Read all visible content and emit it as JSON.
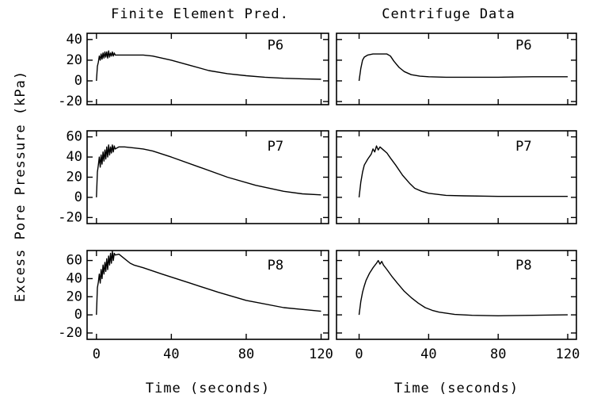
{
  "chart_data": [
    {
      "type": "line",
      "title": "Finite Element Pred.",
      "annotation": "P6",
      "x": [
        0,
        0.5,
        1,
        1.5,
        2,
        2.5,
        3,
        3.5,
        4,
        4.5,
        5,
        5.5,
        6,
        6.5,
        7,
        7.5,
        8,
        8.5,
        9,
        9.5,
        10,
        12,
        15,
        20,
        25,
        30,
        40,
        50,
        60,
        70,
        80,
        90,
        100,
        110,
        120
      ],
      "values": [
        0,
        14,
        18,
        24,
        20,
        26,
        21,
        27,
        22,
        28,
        23,
        28,
        22,
        29,
        23,
        27,
        24,
        28,
        24,
        27,
        25,
        25,
        25,
        25,
        25,
        24,
        20,
        15,
        10,
        7,
        5,
        3.5,
        2.5,
        2,
        1.5
      ],
      "xlim": [
        -5,
        124
      ],
      "ylim": [
        -23,
        46
      ],
      "xticks": [
        0,
        40,
        80,
        120
      ],
      "yticks": [
        -20,
        0,
        20,
        40
      ]
    },
    {
      "type": "line",
      "title": "Centrifuge Data",
      "annotation": "P6",
      "x": [
        0,
        1,
        2,
        3,
        5,
        8,
        12,
        16,
        18,
        20,
        23,
        26,
        30,
        35,
        40,
        50,
        60,
        80,
        100,
        120
      ],
      "values": [
        0,
        12,
        20,
        23,
        25,
        26,
        26,
        26,
        24,
        19,
        13,
        9,
        6,
        4.5,
        4,
        3.5,
        3.5,
        3.5,
        4,
        4
      ],
      "xlim": [
        -13,
        125
      ],
      "ylim": [
        -23,
        46
      ],
      "xticks": [
        0,
        40,
        80,
        120
      ],
      "yticks": [
        -20,
        0,
        20,
        40
      ]
    },
    {
      "type": "line",
      "ylabel": "Excess Pore Pressure (kPa)",
      "annotation": "P7",
      "x": [
        0,
        0.5,
        1,
        1.5,
        2,
        2.5,
        3,
        3.5,
        4,
        4.5,
        5,
        5.5,
        6,
        6.5,
        7,
        7.5,
        8,
        8.5,
        9,
        9.5,
        10,
        12,
        15,
        20,
        25,
        30,
        40,
        55,
        70,
        85,
        100,
        110,
        120
      ],
      "values": [
        0,
        25,
        32,
        40,
        30,
        42,
        33,
        45,
        36,
        47,
        38,
        50,
        40,
        52,
        42,
        50,
        44,
        52,
        45,
        51,
        48,
        50,
        50,
        49,
        48,
        46,
        40,
        30,
        20,
        12,
        6,
        3.5,
        2.5
      ],
      "xlim": [
        -5,
        124
      ],
      "ylim": [
        -26,
        66
      ],
      "xticks": [
        0,
        40,
        80,
        120
      ],
      "yticks": [
        -20,
        0,
        20,
        40,
        60
      ]
    },
    {
      "type": "line",
      "annotation": "P7",
      "x": [
        0,
        1,
        2,
        3,
        5,
        7,
        8,
        9,
        10,
        11,
        12,
        14,
        16,
        18,
        21,
        25,
        29,
        32,
        36,
        40,
        50,
        60,
        80,
        100,
        120
      ],
      "values": [
        0,
        15,
        25,
        32,
        38,
        43,
        48,
        45,
        51,
        47,
        50,
        47,
        44,
        39,
        32,
        22,
        14,
        9,
        6,
        4,
        2,
        1.5,
        1,
        1,
        1
      ],
      "xlim": [
        -13,
        125
      ],
      "ylim": [
        -26,
        66
      ],
      "xticks": [
        0,
        40,
        80,
        120
      ],
      "yticks": [
        -20,
        0,
        20,
        40,
        60
      ]
    },
    {
      "type": "line",
      "xlabel": "Time (seconds)",
      "annotation": "P8",
      "x": [
        0,
        0.5,
        1,
        1.5,
        2,
        2.5,
        3,
        3.5,
        4,
        4.5,
        5,
        5.5,
        6,
        6.5,
        7,
        7.5,
        8,
        8.5,
        9,
        9.5,
        10,
        12,
        15,
        18,
        20,
        25,
        35,
        50,
        65,
        80,
        100,
        120
      ],
      "values": [
        0,
        30,
        36,
        45,
        35,
        50,
        40,
        55,
        45,
        58,
        48,
        62,
        50,
        65,
        55,
        68,
        57,
        70,
        60,
        68,
        66,
        67,
        62,
        57,
        55,
        52,
        45,
        35,
        25,
        16,
        8,
        4
      ],
      "xlim": [
        -5,
        124
      ],
      "ylim": [
        -27,
        71
      ],
      "xticks": [
        0,
        40,
        80,
        120
      ],
      "yticks": [
        -20,
        0,
        20,
        40,
        60
      ]
    },
    {
      "type": "line",
      "xlabel": "Time (seconds)",
      "annotation": "P8",
      "x": [
        0,
        1,
        2,
        3,
        4,
        6,
        8,
        10,
        11,
        12,
        13,
        14,
        16,
        19,
        22,
        26,
        30,
        34,
        38,
        42,
        46,
        55,
        65,
        80,
        100,
        120
      ],
      "values": [
        0,
        15,
        25,
        32,
        38,
        46,
        52,
        57,
        60,
        56,
        59,
        55,
        50,
        42,
        35,
        26,
        19,
        13,
        8,
        5,
        3,
        0.5,
        -0.5,
        -1,
        -0.5,
        0
      ],
      "xlim": [
        -13,
        125
      ],
      "ylim": [
        -27,
        71
      ],
      "xticks": [
        0,
        40,
        80,
        120
      ],
      "yticks": [
        -20,
        0,
        20,
        40,
        60
      ]
    }
  ]
}
